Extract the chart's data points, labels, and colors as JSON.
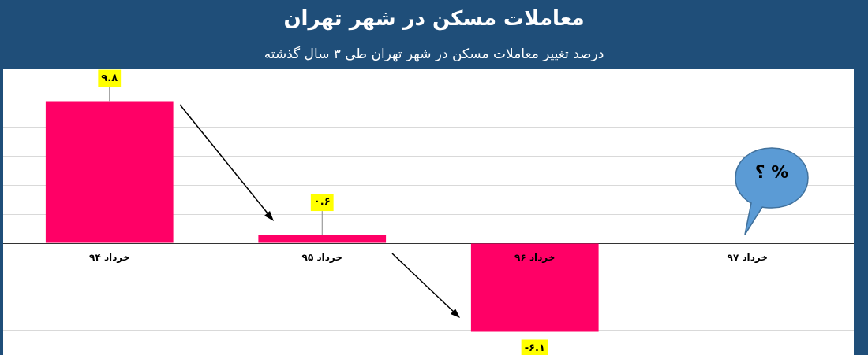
{
  "chart_data": {
    "type": "bar",
    "title": "معاملات مسکن در شهر تهران",
    "subtitle": "درصد تغییر معاملات مسکن در شهر تهران طی ۳ سال گذشته",
    "categories": [
      "خرداد ۹۴",
      "خرداد ۹۵",
      "خرداد ۹۶",
      "خرداد ۹۷"
    ],
    "values": [
      9.8,
      0.6,
      -6.1,
      null
    ],
    "color": "#ff0066",
    "value_labels": [
      "۹.۸",
      "۰.۶",
      "-۶.۱",
      null
    ],
    "ylim": [
      -7.7,
      12
    ],
    "yticks": [
      {
        "value": -6,
        "label": null
      },
      {
        "value": -4,
        "label": null
      },
      {
        "value": -2,
        "label": null
      },
      {
        "value": 0,
        "label": null
      },
      {
        "value": 2,
        "label": null
      },
      {
        "value": 4,
        "label": null
      },
      {
        "value": 6,
        "label": null
      },
      {
        "value": 8,
        "label": null
      },
      {
        "value": 10,
        "label": null
      }
    ],
    "tick_labels": "x",
    "grid": "y",
    "legend": false,
    "annotations": [
      "% ؟"
    ]
  }
}
